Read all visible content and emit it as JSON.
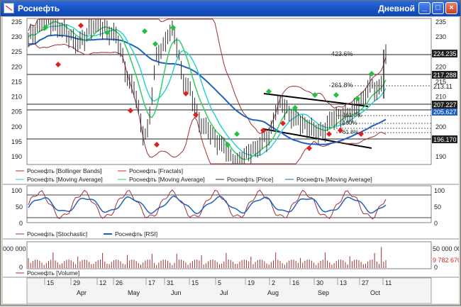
{
  "window": {
    "title": "Роснефть",
    "period": "Дневной",
    "minimize_glyph": "_",
    "restore_glyph": "□",
    "close_glyph": "×"
  },
  "price_panel": {
    "y_ticks": [
      "235",
      "230",
      "225",
      "220",
      "215",
      "210",
      "205",
      "200",
      "195",
      "190"
    ],
    "right_ticks": [
      "235",
      "230",
      "225",
      "220",
      "215",
      "210",
      "205",
      "200",
      "195",
      "190"
    ],
    "price_labels": [
      "224.235",
      "217.288",
      "213.11",
      "207.227",
      "205.627",
      "196.170"
    ],
    "fib_labels": [
      "423.6%",
      "261.8%",
      "161.8%",
      "100%",
      "61.8%"
    ],
    "legend": [
      {
        "label": "Роснефть [Bollinger Bands]",
        "color": "#a03030"
      },
      {
        "label": "Роснефть [Fractals]",
        "color": "#e02020"
      },
      {
        "label": "Роснефть [Moving Average]",
        "color": "#30d0d0"
      },
      {
        "label": "Роснефть [Moving Average]",
        "color": "#30d060"
      },
      {
        "label": "Роснефть [Price]",
        "color": "#303030"
      },
      {
        "label": "Роснефть [Moving Average]",
        "color": "#2060c0"
      }
    ]
  },
  "oscillator_panel": {
    "left_ticks": [
      "100",
      "50",
      "0"
    ],
    "right_ticks": [
      "100",
      "50",
      "0"
    ],
    "legend": [
      {
        "label": "Роснефть [Stochastic]",
        "color": "#a03030"
      },
      {
        "label": "Роснефть [RSI]",
        "color": "#2060c0"
      }
    ]
  },
  "volume_panel": {
    "left_ticks": [
      "000 000",
      "0"
    ],
    "right_ticks": [
      "50 000 000",
      "0"
    ],
    "value_label": "9 782 670",
    "legend": [
      {
        "label": "Роснефть [Volume]",
        "color": "#a03030"
      }
    ]
  },
  "x_axis": {
    "days": [
      "15",
      "29",
      "12",
      "26",
      "17",
      "31",
      "15",
      "5",
      "19",
      "2",
      "16",
      "30",
      "13",
      "27",
      "11"
    ],
    "months": [
      "Apr",
      "May",
      "Jun",
      "Jul",
      "Aug",
      "Sep",
      "Oct"
    ]
  },
  "colors": {
    "bollinger": "#a03030",
    "ma_cyan": "#30d0d0",
    "ma_green": "#30d060",
    "ma_blue": "#2060c0",
    "price": "#303030",
    "fractal_up": "#20c040",
    "fractal_down": "#e02020"
  }
}
